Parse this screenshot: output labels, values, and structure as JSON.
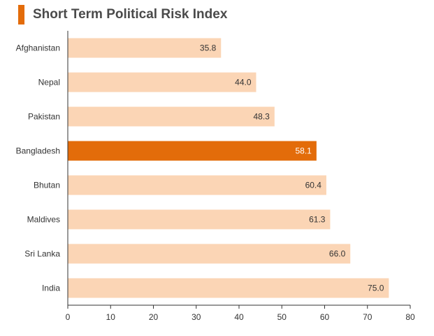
{
  "chart_data": {
    "type": "bar",
    "orientation": "horizontal",
    "title": "Short Term Political Risk Index",
    "categories": [
      "Afghanistan",
      "Nepal",
      "Pakistan",
      "Bangladesh",
      "Bhutan",
      "Maldives",
      "Sri Lanka",
      "India"
    ],
    "values": [
      35.8,
      44.0,
      48.3,
      58.1,
      60.4,
      61.3,
      66.0,
      75.0
    ],
    "value_labels": [
      "35.8",
      "44.0",
      "48.3",
      "58.1",
      "60.4",
      "61.3",
      "66.0",
      "75.0"
    ],
    "highlight": "Bangladesh",
    "xlim": [
      0,
      80
    ],
    "xticks": [
      0,
      10,
      20,
      30,
      40,
      50,
      60,
      70,
      80
    ],
    "xlabel": "",
    "ylabel": "",
    "grid": false,
    "colors": {
      "bar": "#fbd5b5",
      "highlight": "#e36c0a",
      "accent": "#e36c0a",
      "axis": "#333333"
    }
  }
}
